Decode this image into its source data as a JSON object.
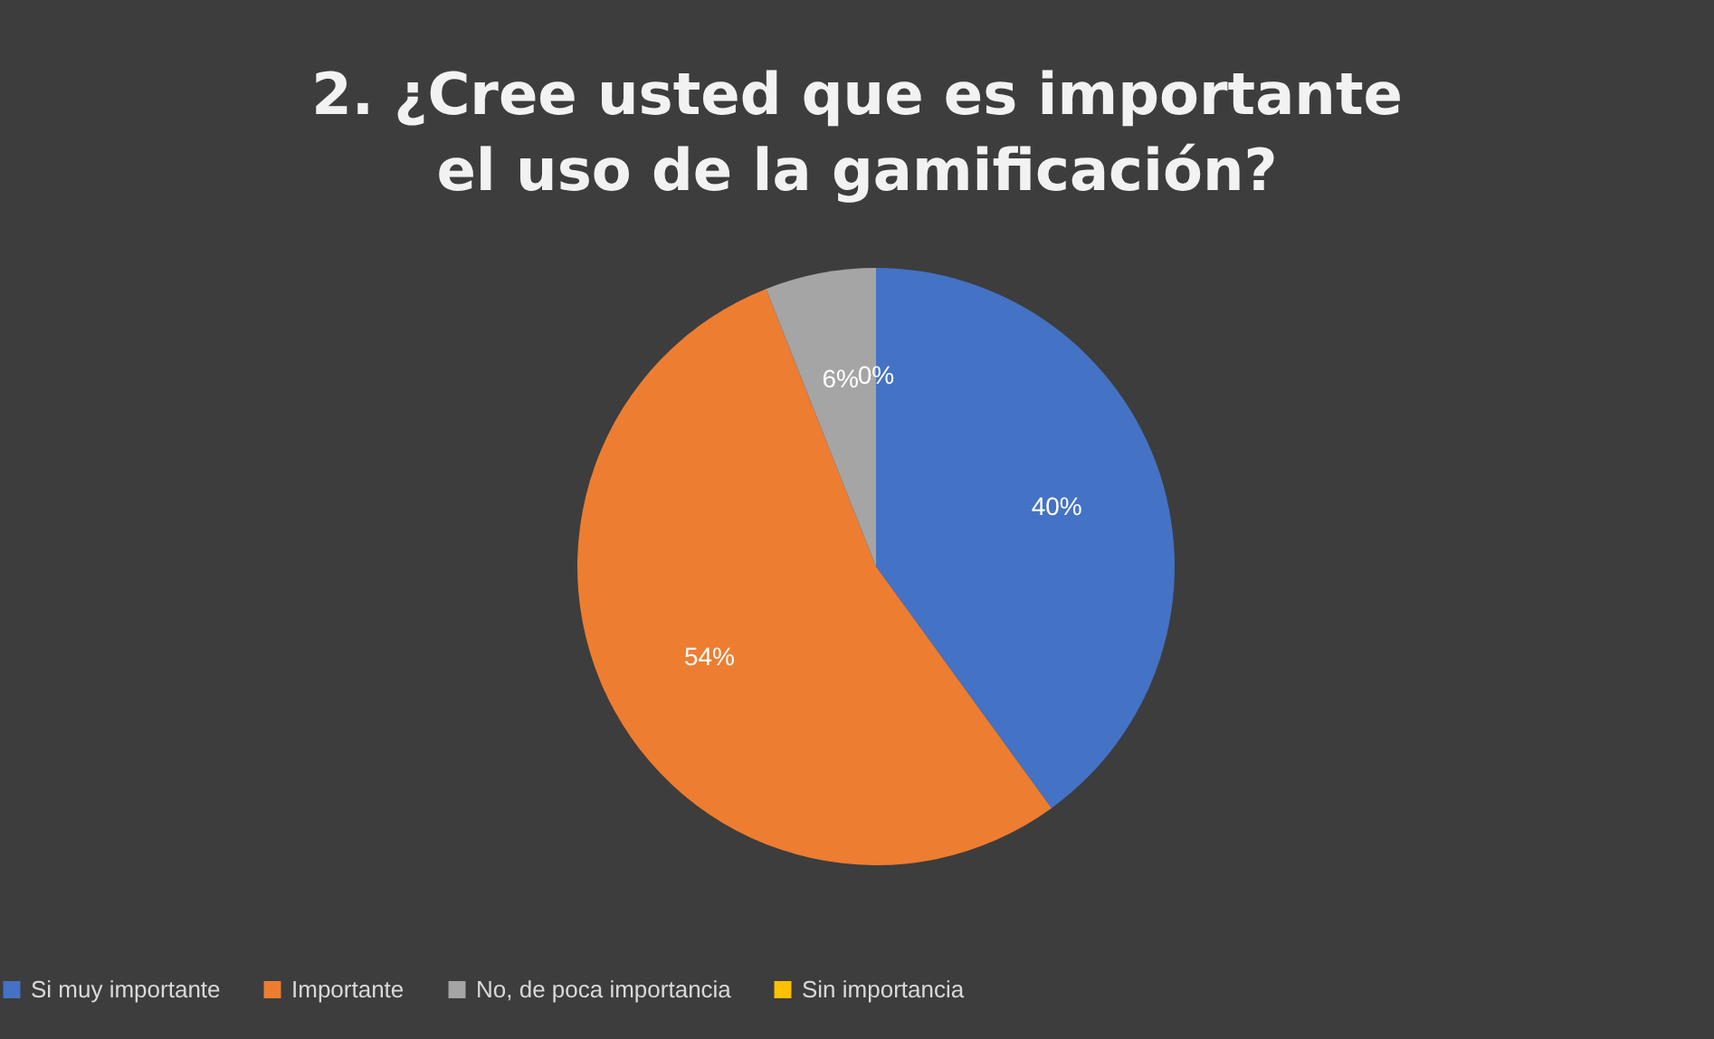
{
  "chart_data": {
    "type": "pie",
    "title": "2. ¿Cree usted que es importante el uso de la gamificación?",
    "categories": [
      "Si muy importante",
      "Importante",
      "No, de poca importancia",
      "Sin importancia"
    ],
    "values": [
      40,
      54,
      6,
      0
    ],
    "colors": [
      "#4472c4",
      "#ed7d31",
      "#a5a5a5",
      "#ffc000"
    ],
    "value_labels": [
      "40%",
      "54%",
      "6%",
      "0%"
    ],
    "legend": "bottom"
  }
}
